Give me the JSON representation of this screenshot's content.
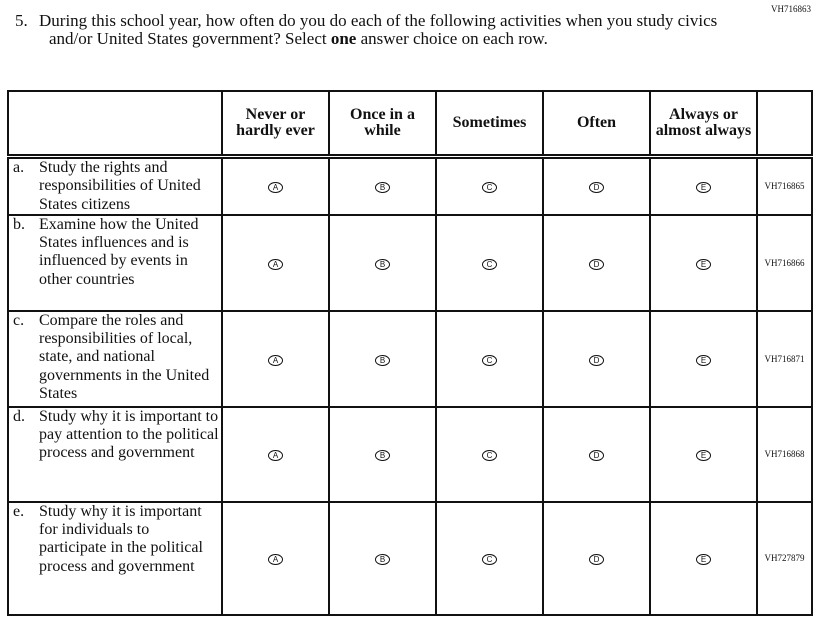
{
  "question_id": "VH716863",
  "question": {
    "number": "5.",
    "text_before": "During this school year, how often do you do each of the following activities when you study civics and/or United States government? Select ",
    "emphasis": "one",
    "text_after": " answer choice on each row."
  },
  "columns": [
    "Never or hardly ever",
    "Once in a while",
    "Sometimes",
    "Often",
    "Always or almost always"
  ],
  "choices": [
    "A",
    "B",
    "C",
    "D",
    "E"
  ],
  "rows": [
    {
      "key": "a.",
      "text": "Study the rights and responsibilities of United States citizens",
      "id": "VH716865"
    },
    {
      "key": "b.",
      "text": "Examine how the United States influences and is influenced by events in other countries",
      "id": "VH716866"
    },
    {
      "key": "c.",
      "text": "Compare the roles and responsibilities of local, state, and national governments in the United States",
      "id": "VH716871"
    },
    {
      "key": "d.",
      "text": "Study why it is important to pay attention to the political process and government",
      "id": "VH716868"
    },
    {
      "key": "e.",
      "text": "Study why it is important for individuals to participate in the political process and government",
      "id": "VH727879"
    }
  ]
}
